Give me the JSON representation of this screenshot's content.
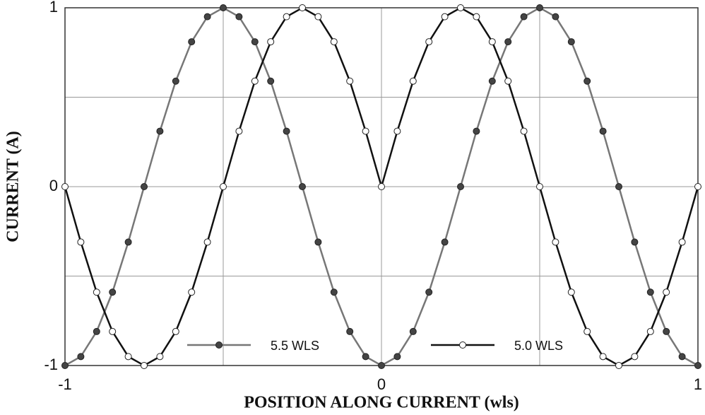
{
  "chart_data": {
    "type": "line",
    "x_label": "POSITION ALONG CURRENT (wls)",
    "y_label": "CURRENT (A)",
    "x": [
      -1,
      -0.95,
      -0.9,
      -0.85,
      -0.8,
      -0.75,
      -0.7,
      -0.65,
      -0.6,
      -0.55,
      -0.5,
      -0.45,
      -0.4,
      -0.35,
      -0.3,
      -0.25,
      -0.2,
      -0.15,
      -0.1,
      -0.05,
      0,
      0.05,
      0.1,
      0.15,
      0.2,
      0.25,
      0.3,
      0.35,
      0.4,
      0.45,
      0.5,
      0.55,
      0.6,
      0.65,
      0.7,
      0.75,
      0.8,
      0.85,
      0.9,
      0.95,
      1
    ],
    "series": [
      {
        "name": "5.5 WLS",
        "color": "#777777",
        "marker_fill": "#444444",
        "values": [
          -1,
          -0.95,
          -0.81,
          -0.59,
          -0.31,
          0,
          0.31,
          0.59,
          0.81,
          0.95,
          1,
          0.95,
          0.81,
          0.59,
          0.31,
          0,
          -0.31,
          -0.59,
          -0.81,
          -0.95,
          -1,
          -0.95,
          -0.81,
          -0.59,
          -0.31,
          0,
          0.31,
          0.59,
          0.81,
          0.95,
          1,
          0.95,
          0.81,
          0.59,
          0.31,
          0,
          -0.31,
          -0.59,
          -0.81,
          -0.95,
          -1
        ]
      },
      {
        "name": "5.0 WLS",
        "color": "#111111",
        "marker_fill": "#ffffff",
        "values": [
          0,
          -0.31,
          -0.59,
          -0.81,
          -0.95,
          -1,
          -0.95,
          -0.81,
          -0.59,
          -0.31,
          0,
          0.31,
          0.59,
          0.81,
          0.95,
          1,
          0.95,
          0.81,
          0.59,
          0.31,
          0,
          0.31,
          0.59,
          0.81,
          0.95,
          1,
          0.95,
          0.81,
          0.59,
          0.31,
          0,
          -0.31,
          -0.59,
          -0.81,
          -0.95,
          -1,
          -0.95,
          -0.81,
          -0.59,
          -0.31,
          0
        ]
      }
    ],
    "xlim": [
      -1,
      1
    ],
    "ylim": [
      -1,
      1
    ],
    "xticks": [
      -1,
      0,
      1
    ],
    "yticks": [
      -1,
      0,
      1
    ],
    "x_minor_gridlines": [
      -0.5,
      0.5
    ],
    "y_minor_gridlines": [
      -0.5,
      0.5
    ],
    "grid": true,
    "legend": "lower center"
  }
}
